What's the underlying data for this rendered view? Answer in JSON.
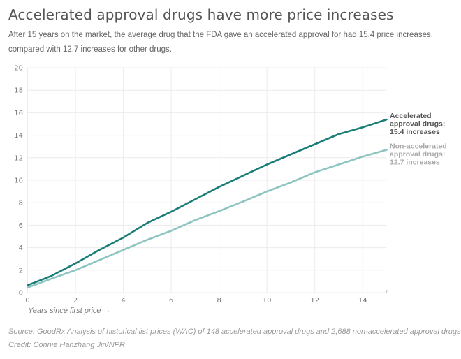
{
  "header": {
    "title": "Accelerated approval drugs have more price increases",
    "subtitle": "After 15 years on the market, the average drug that the FDA gave an accelerated approval for had 15.4 price increases, compared with 12.7 increases for other drugs."
  },
  "footer": {
    "source": "Source: GoodRx Analysis of historical list prices (WAC) of 148 accelerated approval drugs and 2,688 non-accelerated approval drugs",
    "credit": "Credit: Connie Hanzhang Jin/NPR"
  },
  "chart_data": {
    "type": "line",
    "title": "Accelerated approval drugs have more price increases",
    "xlabel": "Years since first price →",
    "ylabel": "",
    "xlim": [
      0,
      15
    ],
    "ylim": [
      0,
      20
    ],
    "grid": true,
    "x": [
      0,
      1,
      2,
      3,
      4,
      5,
      6,
      7,
      8,
      9,
      10,
      11,
      12,
      13,
      14,
      15
    ],
    "x_ticks": [
      0,
      2,
      4,
      6,
      8,
      10,
      12,
      14
    ],
    "x_tick_labels": [
      "0",
      "2",
      "4",
      "6",
      "8",
      "10",
      "12",
      "14"
    ],
    "y_ticks": [
      0,
      2,
      4,
      6,
      8,
      10,
      12,
      14,
      16,
      18,
      20
    ],
    "y_tick_labels": [
      "0",
      "2",
      "4",
      "6",
      "8",
      "10",
      "12",
      "14",
      "16",
      "18",
      "20"
    ],
    "series": [
      {
        "name": "Accelerated approval drugs",
        "color": "#1b7d78",
        "label_lines": [
          "Accelerated",
          "approval drugs:",
          "15.4 increases"
        ],
        "label_color": "#555555",
        "values": [
          0.65,
          1.5,
          2.6,
          3.8,
          4.9,
          6.2,
          7.2,
          8.3,
          9.4,
          10.4,
          11.4,
          12.3,
          13.2,
          14.1,
          14.7,
          15.4
        ]
      },
      {
        "name": "Non-accelerated approval drugs",
        "color": "#8cc4bf",
        "label_lines": [
          "Non-accelerated",
          "approval drugs:",
          "12.7 increases"
        ],
        "label_color": "#aaaaaa",
        "values": [
          0.45,
          1.25,
          2.0,
          2.9,
          3.8,
          4.7,
          5.5,
          6.45,
          7.25,
          8.1,
          9.0,
          9.8,
          10.7,
          11.4,
          12.1,
          12.7
        ]
      }
    ]
  }
}
